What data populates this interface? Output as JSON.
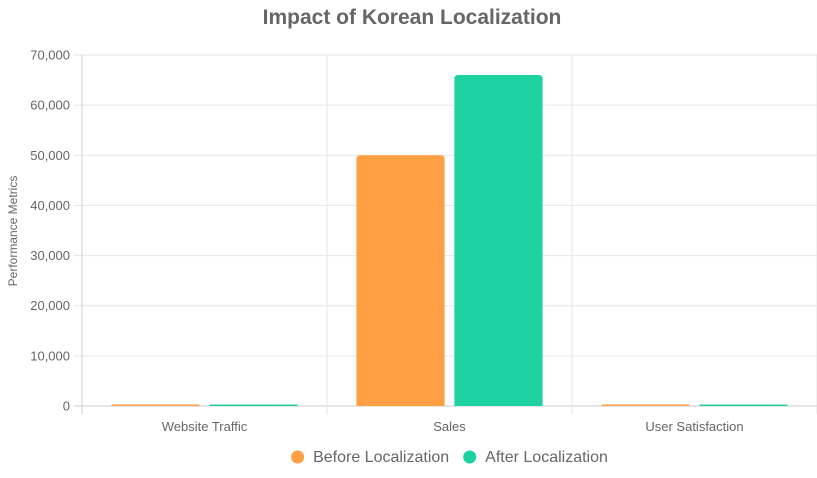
{
  "chart_data": {
    "type": "bar",
    "title": "Impact of Korean Localization",
    "xlabel": "",
    "ylabel": "Performance Metrics",
    "categories": [
      "Website Traffic",
      "Sales",
      "User Satisfaction"
    ],
    "series": [
      {
        "name": "Before Localization",
        "values": [
          15,
          50000,
          7
        ],
        "color": "#FF9F43"
      },
      {
        "name": "After Localization",
        "values": [
          35,
          66000,
          9
        ],
        "color": "#1DD1A1"
      }
    ],
    "ylim": [
      0,
      70000
    ],
    "yticks": [
      0,
      10000,
      20000,
      30000,
      40000,
      50000,
      60000,
      70000
    ],
    "ytick_labels": [
      "0",
      "10,000",
      "20,000",
      "30,000",
      "40,000",
      "50,000",
      "60,000",
      "70,000"
    ],
    "grid": true,
    "legend_position": "bottom",
    "colors": {
      "text": "#666666",
      "grid": "#e6e6e6",
      "axis": "#cccccc"
    }
  }
}
